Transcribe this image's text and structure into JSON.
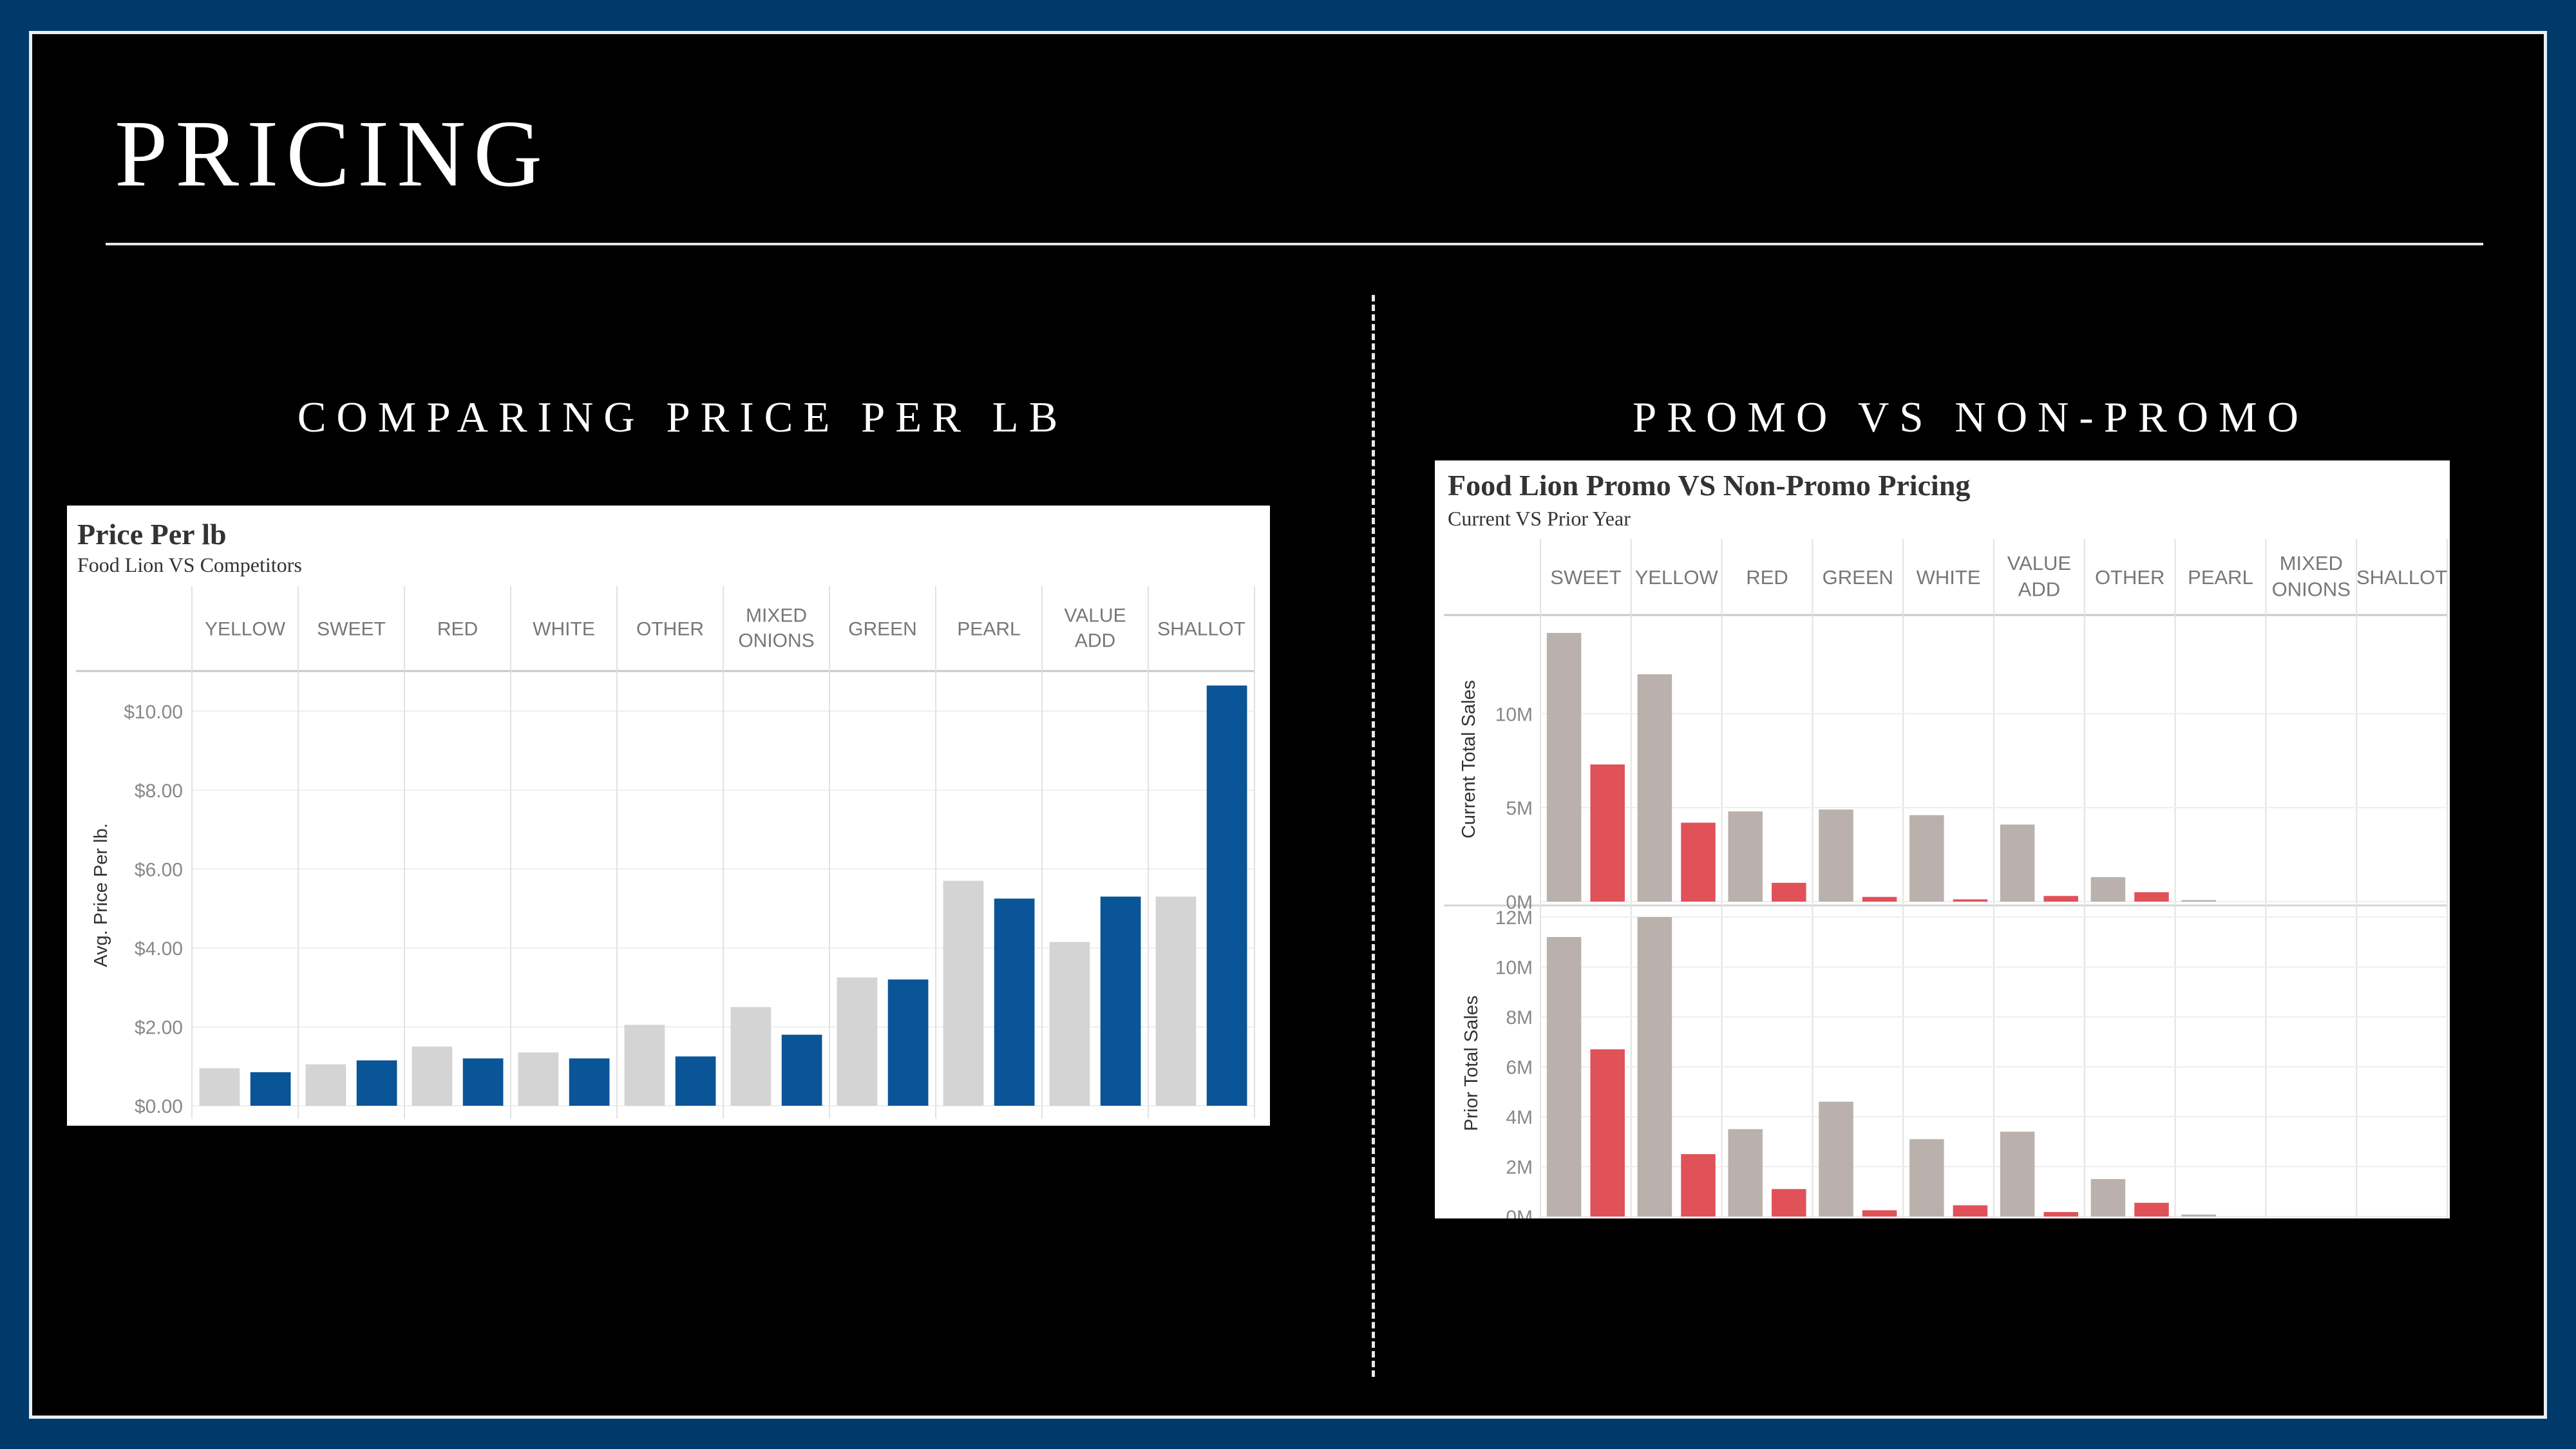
{
  "slide": {
    "title": "PRICING",
    "left_heading": "COMPARING PRICE PER LB",
    "right_heading": "PROMO VS NON-PROMO"
  },
  "colors": {
    "background_frame": "#003a6b",
    "slide_bg": "#000000",
    "foodlion_blue": "#0a5597",
    "competitor_gray": "#d4d4d4",
    "promo_red": "#e05158",
    "nonpromo_taupe": "#bab0ac"
  },
  "chart_data": [
    {
      "type": "bar",
      "title": "Price Per lb",
      "subtitle": "Food Lion VS Competitors",
      "ylabel": "Avg. Price Per lb.",
      "ylim": [
        0,
        11
      ],
      "yticks": [
        0,
        2,
        4,
        6,
        8,
        10
      ],
      "ytick_labels": [
        "$0.00",
        "$2.00",
        "$4.00",
        "$6.00",
        "$8.00",
        "$10.00"
      ],
      "categories": [
        "YELLOW",
        "SWEET",
        "RED",
        "WHITE",
        "OTHER",
        "MIXED ONIONS",
        "GREEN",
        "PEARL",
        "VALUE ADD",
        "SHALLOT"
      ],
      "series": [
        {
          "values": [
            0.95,
            1.05,
            1.5,
            1.35,
            2.05,
            2.5,
            3.25,
            5.7,
            4.15,
            5.3
          ]
        },
        {
          "values": [
            0.85,
            1.15,
            1.2,
            1.2,
            1.25,
            1.8,
            3.2,
            5.25,
            5.3,
            10.65
          ]
        }
      ],
      "grid": true
    },
    {
      "type": "bar",
      "title": "Food Lion Promo VS Non-Promo Pricing",
      "subtitle": "Current VS Prior Year",
      "categories": [
        "SWEET",
        "YELLOW",
        "RED",
        "GREEN",
        "WHITE",
        "VALUE ADD",
        "OTHER",
        "PEARL",
        "MIXED ONIONS",
        "SHALLOT"
      ],
      "panels": [
        {
          "ylabel": "Current Total Sales",
          "ylim": [
            0,
            14.5
          ],
          "yticks": [
            0,
            5,
            10
          ],
          "ytick_labels": [
            "0M",
            "5M",
            "10M"
          ],
          "series": [
            {
              "values": [
                14.3,
                12.1,
                4.8,
                4.9,
                4.6,
                4.1,
                1.3,
                0.08,
                0,
                0
              ]
            },
            {
              "values": [
                7.3,
                4.2,
                1.0,
                0.25,
                0.12,
                0.3,
                0.5,
                0,
                0,
                0
              ]
            }
          ]
        },
        {
          "ylabel": "Prior Total Sales",
          "ylim": [
            0,
            12
          ],
          "yticks": [
            0,
            2,
            4,
            6,
            8,
            10,
            12
          ],
          "ytick_labels": [
            "0M",
            "2M",
            "4M",
            "6M",
            "8M",
            "10M",
            "12M"
          ],
          "series": [
            {
              "values": [
                11.2,
                12.0,
                3.5,
                4.6,
                3.1,
                3.4,
                1.5,
                0.08,
                0,
                0
              ]
            },
            {
              "values": [
                6.7,
                2.5,
                1.1,
                0.25,
                0.45,
                0.18,
                0.55,
                0,
                0,
                0
              ]
            }
          ]
        }
      ],
      "grid": true
    }
  ]
}
